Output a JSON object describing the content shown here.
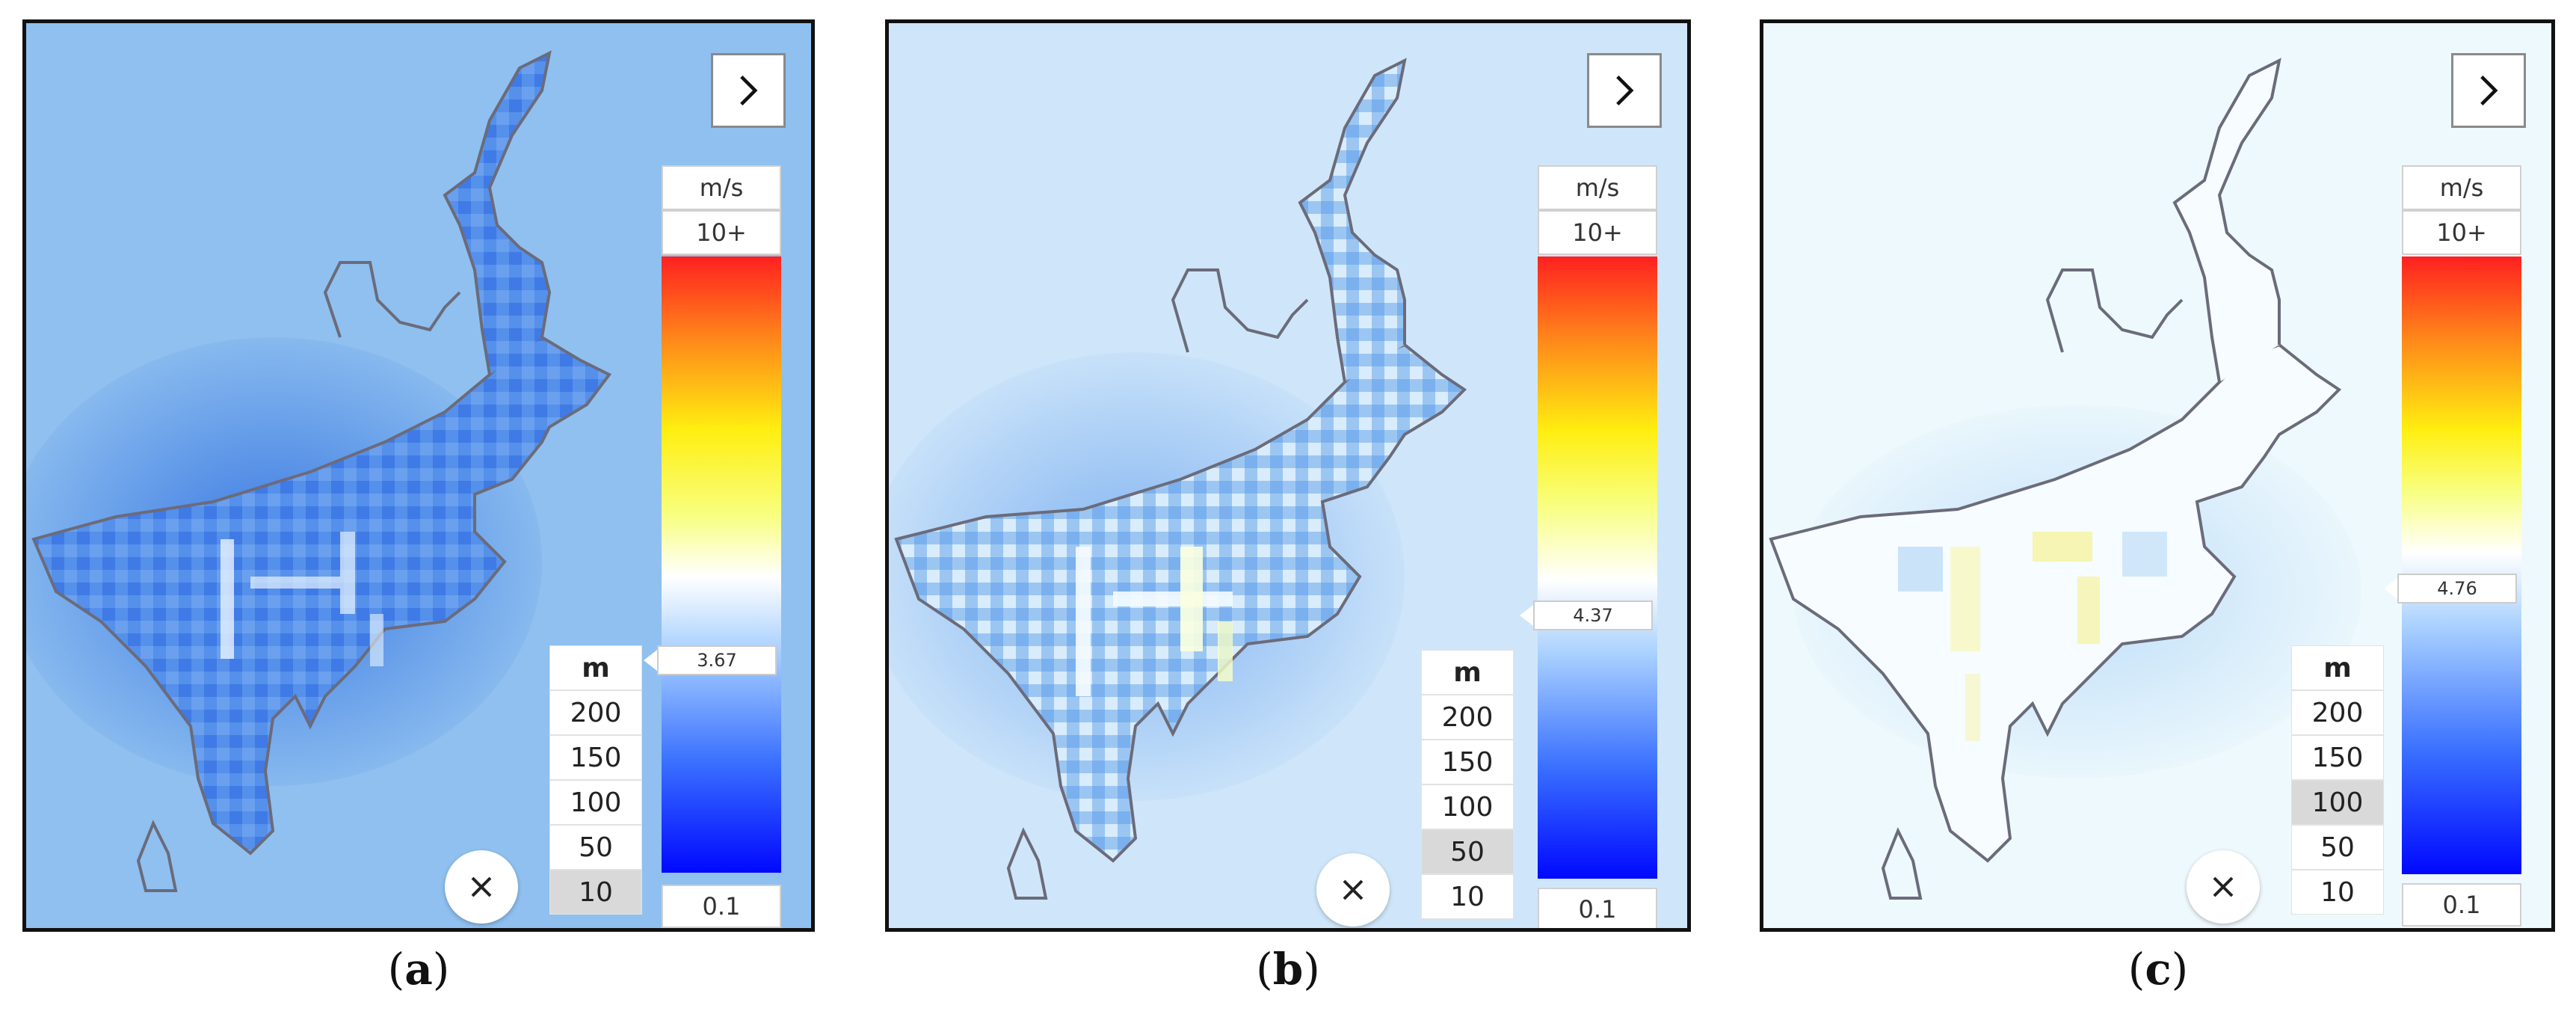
{
  "panels": [
    {
      "caption_open": "(",
      "caption_letter": "a",
      "caption_close": ")",
      "legend": {
        "unit": "m/s",
        "top": "10+",
        "bottom": "0.1",
        "current_value": "3.67"
      },
      "height_selector": {
        "header": "m",
        "options": [
          "200",
          "150",
          "100",
          "50",
          "10"
        ],
        "selected": "10"
      },
      "colors": {
        "background": "#8fc0f0",
        "land": "#4a88e8"
      }
    },
    {
      "caption_open": "(",
      "caption_letter": "b",
      "caption_close": ")",
      "legend": {
        "unit": "m/s",
        "top": "10+",
        "bottom": "0.1",
        "current_value": "4.37"
      },
      "height_selector": {
        "header": "m",
        "options": [
          "200",
          "150",
          "100",
          "50",
          "10"
        ],
        "selected": "50"
      },
      "colors": {
        "background": "#cfe6fa",
        "land": "#8fbff0"
      }
    },
    {
      "caption_open": "(",
      "caption_letter": "c",
      "caption_close": ")",
      "legend": {
        "unit": "m/s",
        "top": "10+",
        "bottom": "0.1",
        "current_value": "4.76"
      },
      "height_selector": {
        "header": "m",
        "options": [
          "200",
          "150",
          "100",
          "50",
          "10"
        ],
        "selected": "100"
      },
      "colors": {
        "background": "#eef9fd",
        "land": "#f3fbff"
      }
    }
  ]
}
